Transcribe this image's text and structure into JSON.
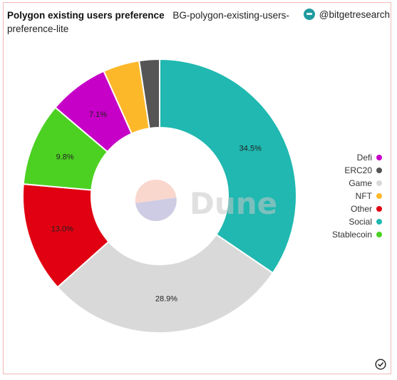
{
  "header": {
    "title": "Polygon existing users preference",
    "subtitle": "BG-polygon-existing-users-preference-lite",
    "author": "@bitgetresearch"
  },
  "watermark": "Dune",
  "chart_data": {
    "type": "pie",
    "donut": true,
    "categories": [
      "Social",
      "Game",
      "Other",
      "Stablecoin",
      "Defi",
      "NFT",
      "ERC20"
    ],
    "values": [
      34.5,
      28.9,
      13.0,
      9.8,
      7.1,
      4.3,
      2.4
    ],
    "value_labels": [
      "34.5%",
      "28.9%",
      "13.0%",
      "9.8%",
      "7.1%",
      "",
      ""
    ],
    "colors": [
      "#20b8b0",
      "#d9d9d9",
      "#e00012",
      "#4cd122",
      "#c600c6",
      "#fdb82a",
      "#555555"
    ],
    "legend_position": "right",
    "legend": [
      {
        "name": "Defi",
        "color": "#c600c6"
      },
      {
        "name": "ERC20",
        "color": "#555555"
      },
      {
        "name": "Game",
        "color": "#d9d9d9"
      },
      {
        "name": "NFT",
        "color": "#fdb82a"
      },
      {
        "name": "Other",
        "color": "#e00012"
      },
      {
        "name": "Social",
        "color": "#20b8b0"
      },
      {
        "name": "Stablecoin",
        "color": "#4cd122"
      }
    ]
  }
}
